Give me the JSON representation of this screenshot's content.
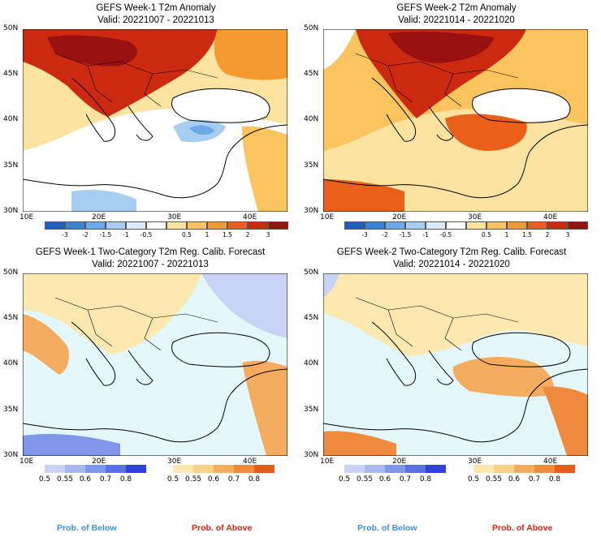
{
  "panels": [
    {
      "title": "GEFS Week-1 T2m Anomaly",
      "valid": "Valid: 20221007 - 20221013"
    },
    {
      "title": "GEFS Week-2 T2m Anomaly",
      "valid": "Valid: 20221014 - 20221020"
    },
    {
      "title": "GEFS Week-1 Two-Category T2m Reg. Calib. Forecast",
      "valid": "Valid: 20221007 - 20221013"
    },
    {
      "title": "GEFS Week-2 Two-Category T2m Reg. Calib. Forecast",
      "valid": "Valid: 20221014 - 20221020"
    }
  ],
  "axes": {
    "lat_labels": [
      "50N",
      "45N",
      "40N",
      "35N",
      "30N"
    ],
    "lon_labels": [
      "10E",
      "20E",
      "30E",
      "40E"
    ]
  },
  "anomaly_colorbar": {
    "ticks": [
      "-3",
      "-2",
      "-1.5",
      "-1",
      "-0.5",
      "0.5",
      "1",
      "1.5",
      "2",
      "3"
    ],
    "colors": [
      "#1f5fbf",
      "#3a82d6",
      "#6fa8e6",
      "#a8cdf2",
      "#dcecfb",
      "#ffffff",
      "#fde3a0",
      "#fbc45e",
      "#f59a2f",
      "#e8601a",
      "#cc2a10",
      "#991010"
    ]
  },
  "prob_below": {
    "name": "Prob. of Below",
    "ticks": [
      "0.5",
      "0.55",
      "0.6",
      "0.7",
      "0.8"
    ],
    "colors": [
      "#c8d3f5",
      "#a9b8f0",
      "#8096ea",
      "#5a70e6",
      "#2f3fe0"
    ]
  },
  "prob_above": {
    "name": "Prob. of Above",
    "ticks": [
      "0.5",
      "0.55",
      "0.6",
      "0.7",
      "0.8"
    ],
    "colors": [
      "#fde8b0",
      "#fbd08a",
      "#f6ac5e",
      "#f08a3e",
      "#ea5a20"
    ]
  },
  "colors": {
    "sea_neutral": "#e4f7fb",
    "legend_below": "#3f8fe0",
    "legend_above": "#e02010"
  }
}
